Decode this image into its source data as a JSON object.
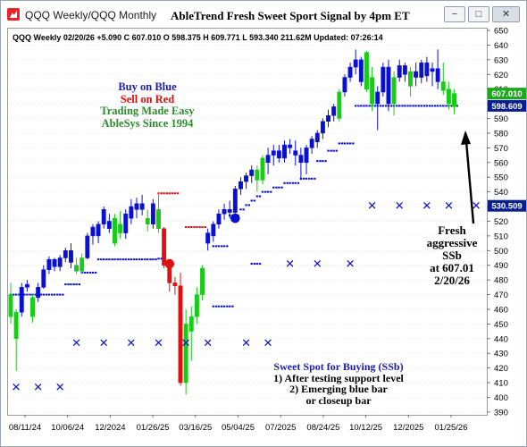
{
  "window": {
    "title": "QQQ Weekly/QQQ Monthly",
    "chart_title": "AbleTrend Fresh Sweet Sport Signal by 4pm ET",
    "buttons": {
      "minimize": "−",
      "maximize": "□",
      "close": "✕"
    }
  },
  "infobar": "QQQ  Weekly 02/20/26 +5.090 C 607.010 O 598.375 H 609.771 L 593.340 211.62M Updated: 07:26:14",
  "legend": {
    "buy": "Buy on Blue",
    "sell": "Sell on Red",
    "tagline": "Trading Made Easy",
    "since": "AbleSys Since 1994"
  },
  "annotations": {
    "fresh": [
      "Fresh",
      "aggressive",
      "SSb",
      "at 607.01",
      "2/20/26"
    ],
    "sweet_spot": {
      "heading": "Sweet Spot for Buying (SSb)",
      "lines": [
        "1) After testing support level",
        "2) Emerging blue bar",
        "or closeup bar"
      ]
    }
  },
  "colors": {
    "blue": "#0a10d0",
    "red": "#e01010",
    "green": "#18cc18",
    "green_text": "#2e8b2e",
    "grid": "#d8d8d8",
    "last_price_bg": "#1fa81f",
    "stop_bg": "#0a1e8c"
  },
  "chart_data": {
    "type": "ohlc-bars",
    "ylim": [
      390,
      650
    ],
    "y_ticks": [
      650,
      640,
      630,
      620,
      610,
      600,
      590,
      580,
      570,
      560,
      550,
      540,
      530,
      520,
      510,
      500,
      490,
      480,
      470,
      460,
      450,
      440,
      430,
      420,
      410,
      400,
      390
    ],
    "price_labels": [
      {
        "value": 607.01,
        "label": "607.010",
        "kind": "last"
      },
      {
        "value": 598.609,
        "label": "598.609",
        "kind": "stop"
      },
      {
        "value": 530.509,
        "label": "530.509",
        "kind": "stop"
      }
    ],
    "x_labels": [
      "08/11/24",
      "10/06/24",
      "12/2024",
      "01/26/25",
      "03/16/25",
      "05/04/25",
      "07/2025",
      "08/24/25",
      "10/12/25",
      "12/2025",
      "01/25/26"
    ],
    "bars": [
      {
        "o": 470,
        "h": 478,
        "l": 450,
        "c": 455,
        "col": "green"
      },
      {
        "o": 440,
        "h": 460,
        "l": 418,
        "c": 458,
        "col": "green"
      },
      {
        "o": 458,
        "h": 478,
        "l": 455,
        "c": 475,
        "col": "blue"
      },
      {
        "o": 475,
        "h": 480,
        "l": 472,
        "c": 477,
        "col": "blue"
      },
      {
        "o": 455,
        "h": 470,
        "l": 451,
        "c": 468,
        "col": "green"
      },
      {
        "o": 468,
        "h": 478,
        "l": 465,
        "c": 475,
        "col": "blue"
      },
      {
        "o": 475,
        "h": 490,
        "l": 474,
        "c": 487,
        "col": "blue"
      },
      {
        "o": 487,
        "h": 496,
        "l": 484,
        "c": 494,
        "col": "blue"
      },
      {
        "o": 494,
        "h": 495,
        "l": 486,
        "c": 489,
        "col": "blue"
      },
      {
        "o": 489,
        "h": 497,
        "l": 486,
        "c": 495,
        "col": "blue"
      },
      {
        "o": 495,
        "h": 502,
        "l": 492,
        "c": 500,
        "col": "blue"
      },
      {
        "o": 500,
        "h": 505,
        "l": 488,
        "c": 492,
        "col": "blue"
      },
      {
        "o": 490,
        "h": 495,
        "l": 484,
        "c": 486,
        "col": "green"
      },
      {
        "o": 486,
        "h": 498,
        "l": 484,
        "c": 495,
        "col": "green"
      },
      {
        "o": 495,
        "h": 512,
        "l": 494,
        "c": 510,
        "col": "blue"
      },
      {
        "o": 510,
        "h": 518,
        "l": 504,
        "c": 516,
        "col": "blue"
      },
      {
        "o": 510,
        "h": 520,
        "l": 505,
        "c": 518,
        "col": "blue"
      },
      {
        "o": 518,
        "h": 530,
        "l": 515,
        "c": 528,
        "col": "blue"
      },
      {
        "o": 520,
        "h": 525,
        "l": 512,
        "c": 515,
        "col": "blue"
      },
      {
        "o": 505,
        "h": 525,
        "l": 503,
        "c": 522,
        "col": "green"
      },
      {
        "o": 518,
        "h": 527,
        "l": 508,
        "c": 512,
        "col": "green"
      },
      {
        "o": 512,
        "h": 528,
        "l": 508,
        "c": 525,
        "col": "blue"
      },
      {
        "o": 522,
        "h": 535,
        "l": 518,
        "c": 530,
        "col": "blue"
      },
      {
        "o": 528,
        "h": 536,
        "l": 522,
        "c": 532,
        "col": "blue"
      },
      {
        "o": 532,
        "h": 538,
        "l": 524,
        "c": 528,
        "col": "blue"
      },
      {
        "o": 522,
        "h": 528,
        "l": 513,
        "c": 518,
        "col": "green"
      },
      {
        "o": 518,
        "h": 535,
        "l": 515,
        "c": 532,
        "col": "blue"
      },
      {
        "o": 528,
        "h": 540,
        "l": 512,
        "c": 515,
        "col": "green"
      },
      {
        "o": 515,
        "h": 516,
        "l": 488,
        "c": 490,
        "col": "red"
      },
      {
        "o": 490,
        "h": 492,
        "l": 472,
        "c": 478,
        "col": "red"
      },
      {
        "o": 478,
        "h": 482,
        "l": 470,
        "c": 476,
        "col": "red"
      },
      {
        "o": 476,
        "h": 485,
        "l": 408,
        "c": 410,
        "col": "red"
      },
      {
        "o": 410,
        "h": 460,
        "l": 402,
        "c": 450,
        "col": "green"
      },
      {
        "o": 445,
        "h": 462,
        "l": 425,
        "c": 455,
        "col": "green"
      },
      {
        "o": 455,
        "h": 475,
        "l": 450,
        "c": 470,
        "col": "green"
      },
      {
        "o": 470,
        "h": 490,
        "l": 466,
        "c": 488,
        "col": "green"
      },
      {
        "o": 505,
        "h": 515,
        "l": 500,
        "c": 512,
        "col": "blue"
      },
      {
        "o": 510,
        "h": 520,
        "l": 506,
        "c": 518,
        "col": "blue"
      },
      {
        "o": 518,
        "h": 528,
        "l": 515,
        "c": 525,
        "col": "blue"
      },
      {
        "o": 525,
        "h": 532,
        "l": 521,
        "c": 528,
        "col": "blue"
      },
      {
        "o": 528,
        "h": 534,
        "l": 522,
        "c": 526,
        "col": "blue"
      },
      {
        "o": 526,
        "h": 544,
        "l": 524,
        "c": 542,
        "col": "blue"
      },
      {
        "o": 542,
        "h": 550,
        "l": 538,
        "c": 547,
        "col": "blue"
      },
      {
        "o": 547,
        "h": 553,
        "l": 542,
        "c": 551,
        "col": "blue"
      },
      {
        "o": 551,
        "h": 558,
        "l": 546,
        "c": 555,
        "col": "blue"
      },
      {
        "o": 555,
        "h": 558,
        "l": 540,
        "c": 548,
        "col": "green"
      },
      {
        "o": 548,
        "h": 565,
        "l": 545,
        "c": 563,
        "col": "green"
      },
      {
        "o": 560,
        "h": 570,
        "l": 552,
        "c": 565,
        "col": "blue"
      },
      {
        "o": 565,
        "h": 572,
        "l": 558,
        "c": 568,
        "col": "blue"
      },
      {
        "o": 568,
        "h": 572,
        "l": 560,
        "c": 563,
        "col": "blue"
      },
      {
        "o": 563,
        "h": 575,
        "l": 560,
        "c": 572,
        "col": "blue"
      },
      {
        "o": 572,
        "h": 576,
        "l": 566,
        "c": 570,
        "col": "blue"
      },
      {
        "o": 568,
        "h": 575,
        "l": 558,
        "c": 565,
        "col": "blue"
      },
      {
        "o": 565,
        "h": 570,
        "l": 548,
        "c": 560,
        "col": "blue"
      },
      {
        "o": 560,
        "h": 572,
        "l": 552,
        "c": 570,
        "col": "blue"
      },
      {
        "o": 570,
        "h": 578,
        "l": 566,
        "c": 576,
        "col": "blue"
      },
      {
        "o": 574,
        "h": 582,
        "l": 570,
        "c": 580,
        "col": "blue"
      },
      {
        "o": 580,
        "h": 590,
        "l": 576,
        "c": 588,
        "col": "blue"
      },
      {
        "o": 588,
        "h": 596,
        "l": 584,
        "c": 592,
        "col": "blue"
      },
      {
        "o": 592,
        "h": 600,
        "l": 588,
        "c": 598,
        "col": "blue"
      },
      {
        "o": 590,
        "h": 610,
        "l": 588,
        "c": 608,
        "col": "green"
      },
      {
        "o": 608,
        "h": 620,
        "l": 605,
        "c": 618,
        "col": "blue"
      },
      {
        "o": 618,
        "h": 628,
        "l": 615,
        "c": 625,
        "col": "blue"
      },
      {
        "o": 625,
        "h": 637,
        "l": 620,
        "c": 630,
        "col": "blue"
      },
      {
        "o": 630,
        "h": 632,
        "l": 612,
        "c": 615,
        "col": "blue"
      },
      {
        "o": 635,
        "h": 636,
        "l": 608,
        "c": 610,
        "col": "green"
      },
      {
        "o": 618,
        "h": 625,
        "l": 595,
        "c": 600,
        "col": "green"
      },
      {
        "o": 600,
        "h": 612,
        "l": 582,
        "c": 608,
        "col": "blue"
      },
      {
        "o": 608,
        "h": 628,
        "l": 605,
        "c": 625,
        "col": "blue"
      },
      {
        "o": 625,
        "h": 630,
        "l": 595,
        "c": 600,
        "col": "blue"
      },
      {
        "o": 600,
        "h": 622,
        "l": 592,
        "c": 618,
        "col": "green"
      },
      {
        "o": 618,
        "h": 630,
        "l": 615,
        "c": 626,
        "col": "blue"
      },
      {
        "o": 626,
        "h": 628,
        "l": 615,
        "c": 620,
        "col": "blue"
      },
      {
        "o": 612,
        "h": 625,
        "l": 605,
        "c": 622,
        "col": "green"
      },
      {
        "o": 622,
        "h": 628,
        "l": 612,
        "c": 618,
        "col": "blue"
      },
      {
        "o": 618,
        "h": 630,
        "l": 614,
        "c": 628,
        "col": "blue"
      },
      {
        "o": 628,
        "h": 632,
        "l": 615,
        "c": 619,
        "col": "blue"
      },
      {
        "o": 622,
        "h": 628,
        "l": 612,
        "c": 624,
        "col": "blue"
      },
      {
        "o": 624,
        "h": 637,
        "l": 610,
        "c": 615,
        "col": "blue"
      },
      {
        "o": 615,
        "h": 628,
        "l": 606,
        "c": 609,
        "col": "green"
      },
      {
        "o": 610,
        "h": 615,
        "l": 596,
        "c": 600,
        "col": "green"
      },
      {
        "o": 598,
        "h": 610,
        "l": 593,
        "c": 607,
        "col": "green"
      }
    ],
    "stops": [
      {
        "from": 0,
        "to": 9,
        "y": 470,
        "col": "blue"
      },
      {
        "from": 10,
        "to": 12,
        "y": 477,
        "col": "blue"
      },
      {
        "from": 13,
        "to": 15,
        "y": 485,
        "col": "blue"
      },
      {
        "from": 16,
        "to": 26,
        "y": 494,
        "col": "blue"
      },
      {
        "from": 27,
        "to": 27,
        "y": 494.5,
        "col": "blue"
      },
      {
        "from": 27,
        "to": 30,
        "y": 539,
        "col": "red"
      },
      {
        "from": 32,
        "to": 35,
        "y": 516,
        "col": "red"
      },
      {
        "from": 37,
        "to": 39,
        "y": 503,
        "col": "blue"
      },
      {
        "from": 37,
        "to": 40,
        "y": 462,
        "col": "blue"
      },
      {
        "from": 40,
        "to": 41,
        "y": 524,
        "col": "blue"
      },
      {
        "from": 42,
        "to": 42,
        "y": 528,
        "col": "blue"
      },
      {
        "from": 43,
        "to": 43,
        "y": 531,
        "col": "blue"
      },
      {
        "from": 44,
        "to": 45,
        "y": 491,
        "col": "blue"
      },
      {
        "from": 44,
        "to": 44,
        "y": 534,
        "col": "blue"
      },
      {
        "from": 45,
        "to": 45,
        "y": 537,
        "col": "blue"
      },
      {
        "from": 46,
        "to": 47,
        "y": 540,
        "col": "blue"
      },
      {
        "from": 48,
        "to": 49,
        "y": 543,
        "col": "blue"
      },
      {
        "from": 50,
        "to": 52,
        "y": 546,
        "col": "blue"
      },
      {
        "from": 53,
        "to": 55,
        "y": 549,
        "col": "blue"
      },
      {
        "from": 56,
        "to": 57,
        "y": 561,
        "col": "blue"
      },
      {
        "from": 58,
        "to": 59,
        "y": 568,
        "col": "blue"
      },
      {
        "from": 60,
        "to": 62,
        "y": 573,
        "col": "blue"
      },
      {
        "from": 63,
        "to": 81,
        "y": 598.6,
        "col": "blue"
      }
    ],
    "x_markers": [
      {
        "bar": 1,
        "y": 407
      },
      {
        "bar": 5,
        "y": 407
      },
      {
        "bar": 9,
        "y": 407
      },
      {
        "bar": 12,
        "y": 437
      },
      {
        "bar": 17,
        "y": 437
      },
      {
        "bar": 22,
        "y": 437
      },
      {
        "bar": 27,
        "y": 437
      },
      {
        "bar": 32,
        "y": 437
      },
      {
        "bar": 36,
        "y": 437
      },
      {
        "bar": 43,
        "y": 437
      },
      {
        "bar": 47,
        "y": 437
      },
      {
        "bar": 51,
        "y": 491
      },
      {
        "bar": 56,
        "y": 491
      },
      {
        "bar": 62,
        "y": 491
      },
      {
        "bar": 66,
        "y": 530.5
      },
      {
        "bar": 71,
        "y": 530.5
      },
      {
        "bar": 76,
        "y": 530.5
      },
      {
        "bar": 80,
        "y": 530.5
      },
      {
        "bar": 85,
        "y": 530.5
      }
    ],
    "dots": [
      {
        "bar": 29,
        "y": 491,
        "col": "red"
      },
      {
        "bar": 41,
        "y": 522,
        "col": "blue"
      }
    ]
  }
}
